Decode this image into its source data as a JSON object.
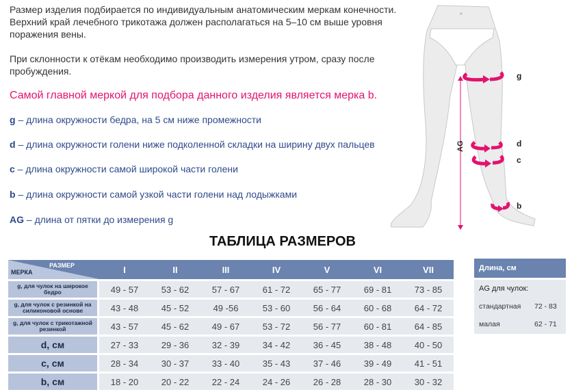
{
  "intro": [
    "Размер изделия подбирается по индивидуальным анатомическим меркам конечности. Верхний край лечебного трикотажа должен располагаться на 5–10 см выше уровня поражения вены.",
    "При склонности к отёкам необходимо производить измерения утром, сразу после пробуждения."
  ],
  "highlight": "Самой главной меркой для подбора данного изделия является мерка b.",
  "legend": [
    {
      "key": "g",
      "text": " – длина окружности бедра, на 5 см ниже промежности"
    },
    {
      "key": "d",
      "text": " – длина окружности голени ниже подколенной складки на ширину двух пальцев"
    },
    {
      "key": "c",
      "text": " – длина окружности самой широкой части голени"
    },
    {
      "key": "b",
      "text": " – длина окружности самой узкой части голени над лодыжками"
    },
    {
      "key": "AG",
      "text": " – длина от пятки до измерения g"
    }
  ],
  "diagram": {
    "labels": [
      "g",
      "d",
      "c",
      "b"
    ],
    "axis": "AG",
    "accent": "#e2136e"
  },
  "table_title": "ТАБЛИЦА РАЗМЕРОВ",
  "table": {
    "corner_top": "РАЗМЕР",
    "corner_bottom": "МЕРКА",
    "sizes": [
      "I",
      "II",
      "III",
      "IV",
      "V",
      "VI",
      "VII"
    ],
    "rows": [
      {
        "label": "g, для чулок на широкое бедро",
        "small": true,
        "values": [
          "49 - 57",
          "53 - 62",
          "57 - 67",
          "61 - 72",
          "65 - 77",
          "69 - 81",
          "73 - 85"
        ]
      },
      {
        "label": "g, для чулок с  резинкой на силиконовой основе",
        "small": true,
        "values": [
          "43 - 48",
          "45 - 52",
          "49 -56",
          "53 - 60",
          "56 - 64",
          "60 - 68",
          "64 - 72"
        ]
      },
      {
        "label": "g, для чулок с трикотажной резинкой",
        "small": true,
        "values": [
          "43 - 57",
          "45 - 62",
          "49 - 67",
          "53 - 72",
          "56 - 77",
          "60 - 81",
          "64 - 85"
        ]
      },
      {
        "label": "d, см",
        "small": false,
        "values": [
          "27 - 33",
          "29 - 36",
          "32 - 39",
          "34 - 42",
          "36 - 45",
          "38 - 48",
          "40 - 50"
        ]
      },
      {
        "label": "c, см",
        "small": false,
        "values": [
          "28 - 34",
          "30 - 37",
          "33 - 40",
          "35 - 43",
          "37 - 46",
          "39 - 49",
          "41 - 51"
        ]
      },
      {
        "label": "b, см",
        "small": false,
        "values": [
          "18 - 20",
          "20 - 22",
          "22 - 24",
          "24 - 26",
          "26 - 28",
          "28 - 30",
          "30 - 32"
        ]
      }
    ]
  },
  "length": {
    "header": "Длина, см",
    "sub": "AG для чулок:",
    "rows": [
      {
        "name": "стандартная",
        "value": "72 - 83"
      },
      {
        "name": "малая",
        "value": "62 - 71"
      }
    ]
  },
  "colors": {
    "header": "#6a83af",
    "label_cell": "#b7c3da",
    "value_cell": "#e6e9ee",
    "pink": "#e2136e",
    "blue": "#2e4a8a"
  }
}
